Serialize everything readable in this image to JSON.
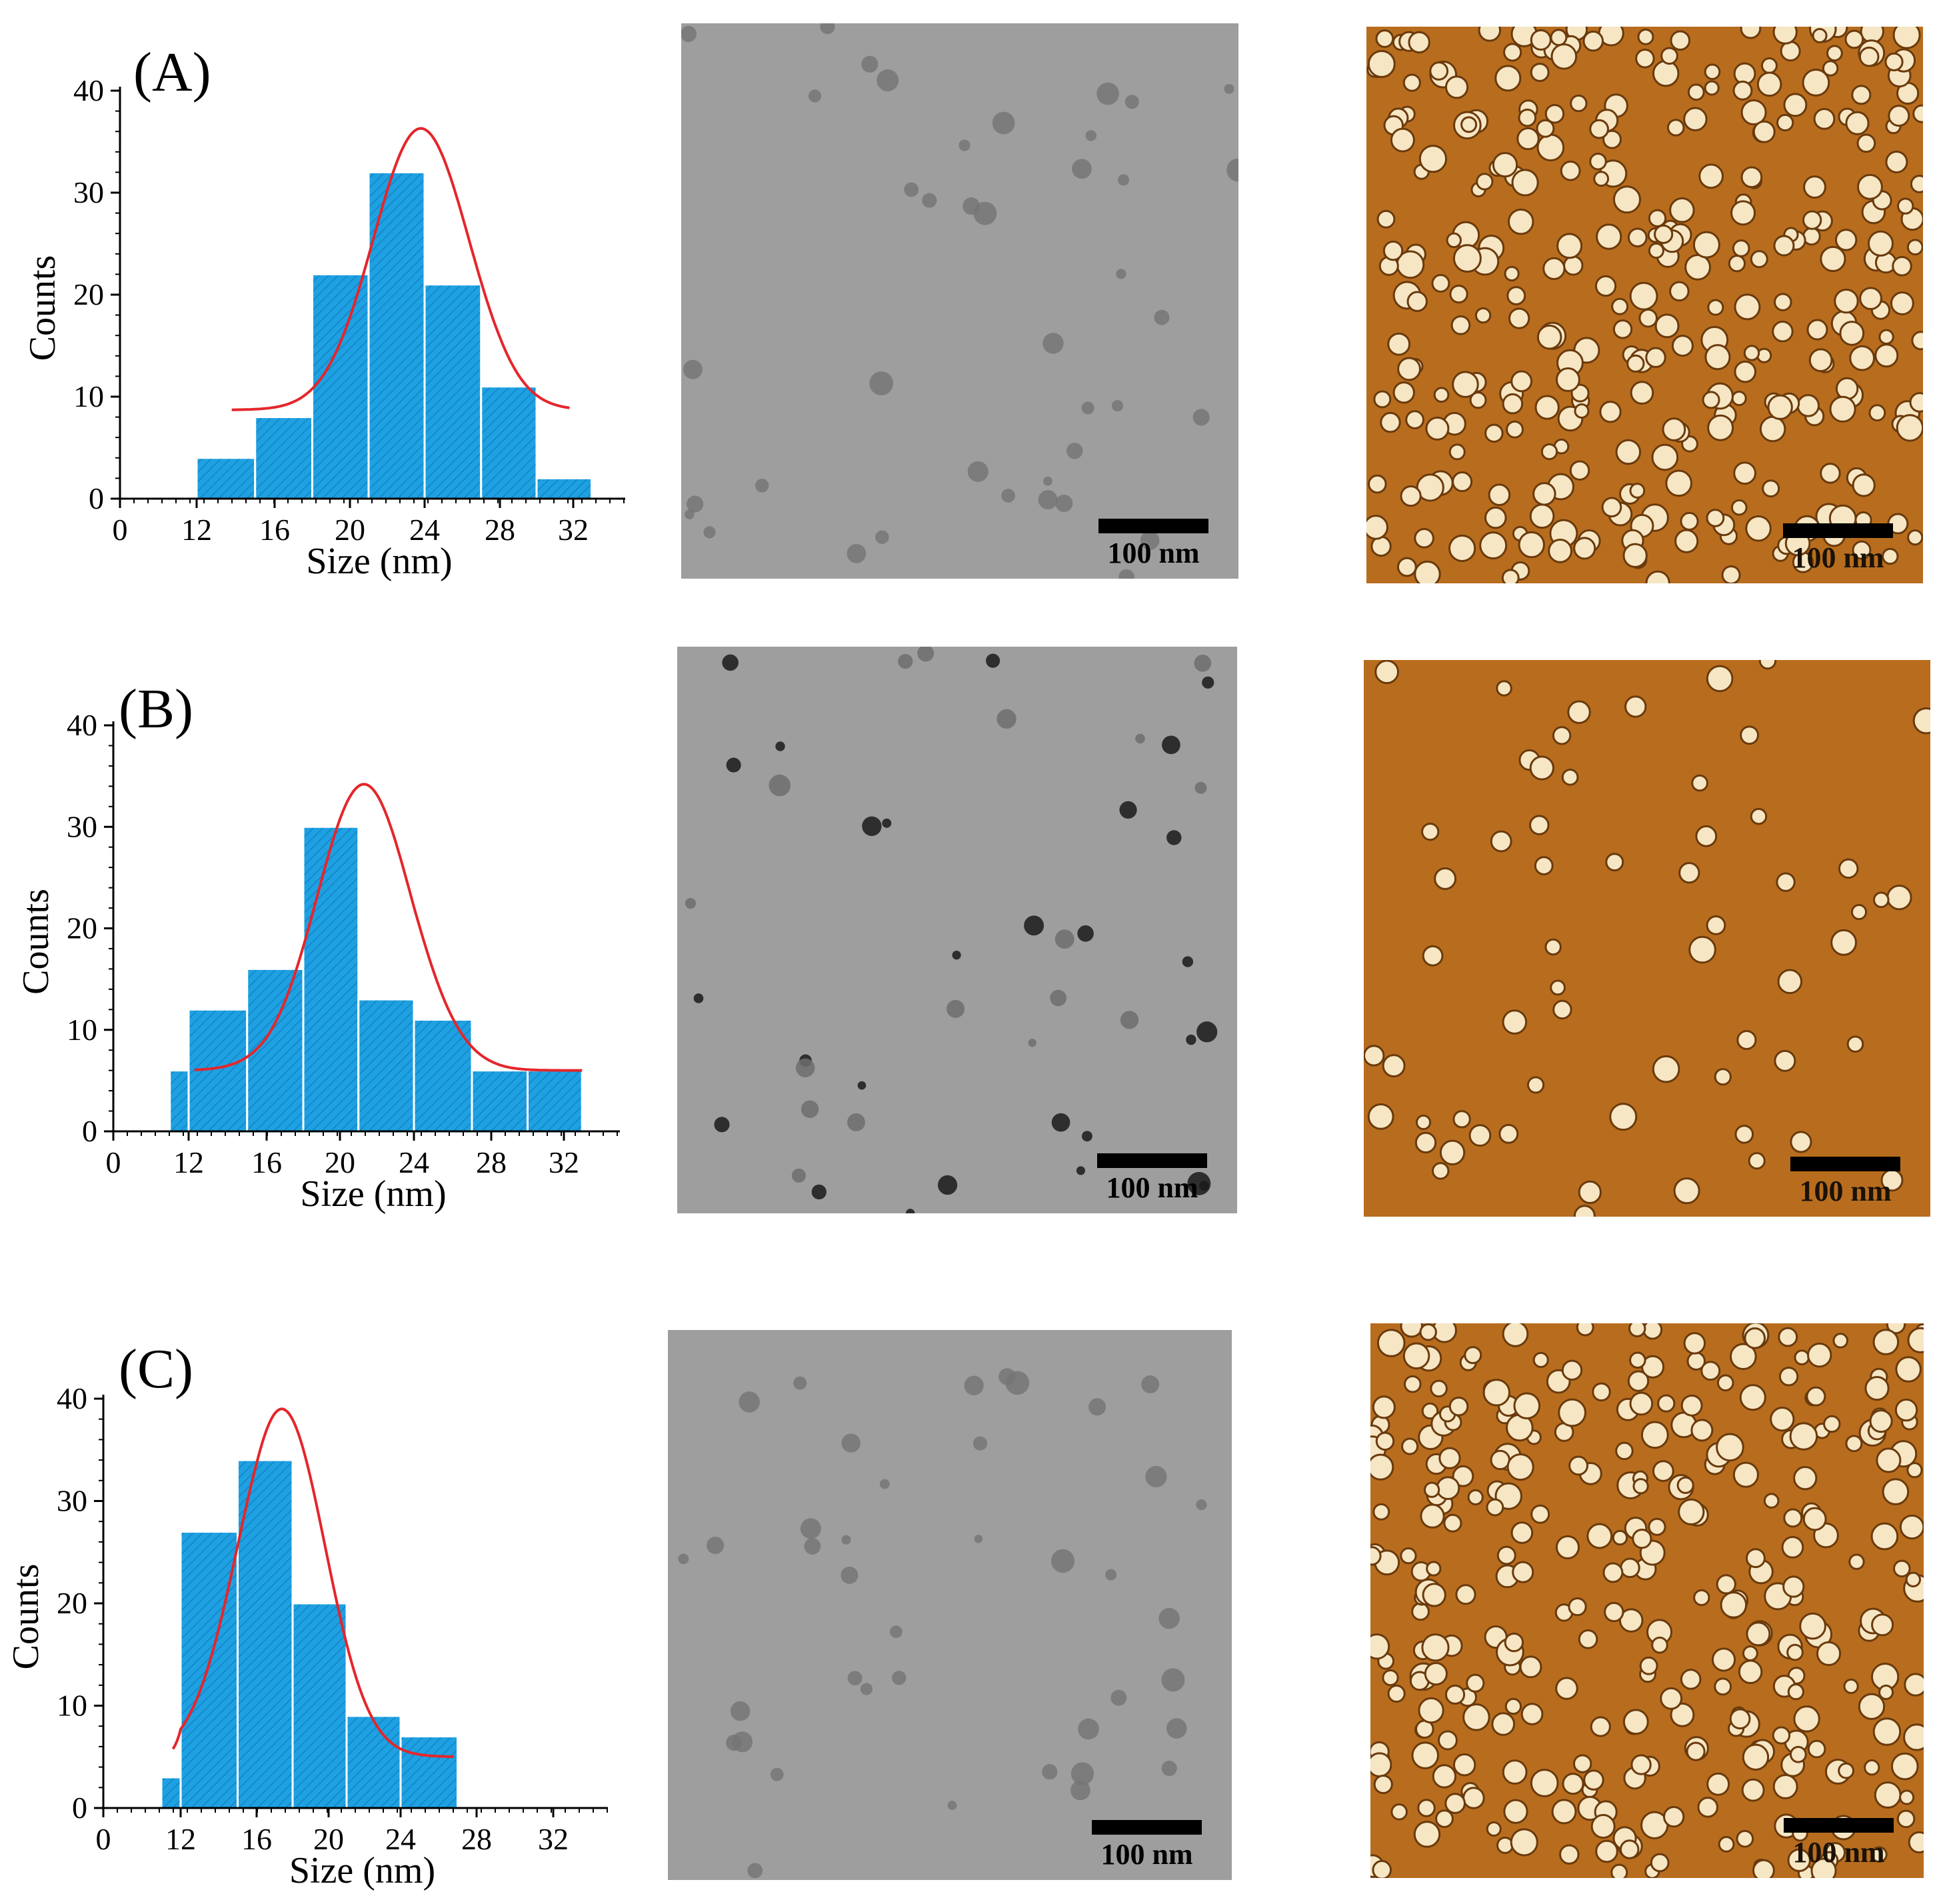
{
  "figure": {
    "scale_bar_label": "100 nm",
    "colors": {
      "bar_fill": "#1ea1e2",
      "bar_edge": "#ffffff",
      "fit_line": "#e4262b",
      "tem_background": "#9e9e9e",
      "afm_background": "#b86d1e"
    }
  },
  "chart_data": [
    {
      "panel_label": "(A)",
      "type": "bar",
      "xlabel": "Size (nm)",
      "ylabel": "Counts",
      "xlim": [
        0,
        34
      ],
      "ylim": [
        0,
        40
      ],
      "x_ticks": [
        "0",
        "12",
        "16",
        "20",
        "24",
        "28",
        "32"
      ],
      "y_ticks": [
        "0",
        "10",
        "20",
        "30",
        "40"
      ],
      "bin_edges": [
        12,
        15,
        18,
        21,
        24,
        27,
        30,
        33
      ],
      "values": [
        4,
        8,
        22,
        32,
        21,
        11,
        2
      ],
      "fit": {
        "type": "gaussian",
        "baseline": 8.7,
        "center": 23.8,
        "amplitude": 27.6,
        "sigma": 2.55,
        "x_range": [
          13.8,
          31.8
        ]
      }
    },
    {
      "panel_label": "(B)",
      "type": "bar",
      "xlabel": "Size (nm)",
      "ylabel": "Counts",
      "xlim": [
        0,
        34
      ],
      "ylim": [
        0,
        40
      ],
      "x_ticks": [
        "0",
        "12",
        "16",
        "20",
        "24",
        "28",
        "32"
      ],
      "y_ticks": [
        "0",
        "10",
        "20",
        "30",
        "40"
      ],
      "bin_edges": [
        9,
        12,
        15,
        18,
        21,
        24,
        27,
        30,
        33
      ],
      "values": [
        6,
        12,
        16,
        30,
        13,
        11,
        6,
        6
      ],
      "fit": {
        "type": "gaussian",
        "baseline": 6,
        "center": 21.3,
        "amplitude": 28.2,
        "sigma": 2.55,
        "x_range": [
          12.3,
          33.0
        ]
      }
    },
    {
      "panel_label": "(C)",
      "type": "bar",
      "xlabel": "Size (nm)",
      "ylabel": "Counts",
      "xlim": [
        0,
        34
      ],
      "ylim": [
        0,
        40
      ],
      "x_ticks": [
        "0",
        "12",
        "16",
        "20",
        "24",
        "28",
        "32"
      ],
      "y_ticks": [
        "0",
        "10",
        "20",
        "30",
        "40"
      ],
      "bin_edges": [
        9,
        12,
        15,
        18,
        21,
        24,
        27
      ],
      "values": [
        3,
        27,
        34,
        20,
        9,
        7
      ],
      "fit": {
        "type": "gaussian",
        "baseline": 5,
        "center": 17.4,
        "amplitude": 34,
        "sigma": 2.4,
        "x_range": [
          10.8,
          26.8
        ]
      }
    }
  ]
}
